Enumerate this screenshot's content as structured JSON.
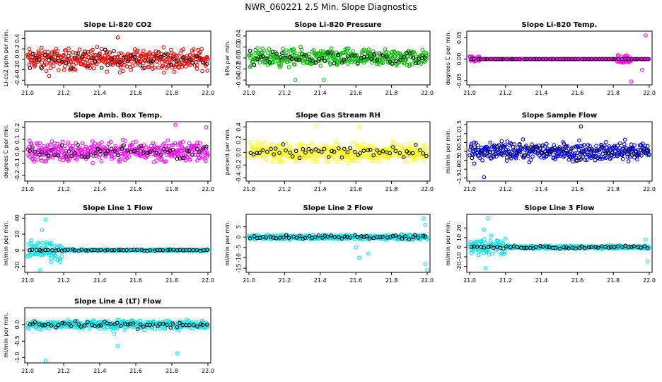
{
  "title": "NWR_060221  2.5 Min. Slope Diagnostics",
  "chart_data": [
    {
      "type": "scatter",
      "title": "Slope Li-820 CO2",
      "ylabel": "Li-co2 ppm per min.",
      "xlim": [
        21.0,
        22.0
      ],
      "ylim": [
        -0.45,
        0.5
      ],
      "xticks": [
        21.0,
        21.2,
        21.4,
        21.6,
        21.8,
        22.0
      ],
      "yticks": [
        -0.4,
        -0.2,
        0.0,
        0.2,
        0.4
      ],
      "ytick_labels": [
        "-0.4",
        "-0.2",
        "0.0",
        "0.2",
        "0.4"
      ],
      "color": "#ff0000",
      "spread": 0.18,
      "outliers": [
        [
          21.5,
          0.42
        ],
        [
          21.12,
          -0.32
        ]
      ],
      "pattern": "noise"
    },
    {
      "type": "scatter",
      "title": "Slope Li-820 Pressure",
      "ylabel": "kPa per min.",
      "xlim": [
        21.0,
        22.0
      ],
      "ylim": [
        -0.045,
        0.045
      ],
      "xticks": [
        21.0,
        21.2,
        21.4,
        21.6,
        21.8,
        22.0
      ],
      "yticks": [
        -0.04,
        -0.02,
        0.0,
        0.02,
        0.04
      ],
      "ytick_labels": [
        "-0.04",
        "-0.02",
        "0.00",
        "0.02",
        "0.04"
      ],
      "color": "#00bb00",
      "spread": 0.014,
      "outliers": [
        [
          21.26,
          -0.04
        ],
        [
          21.42,
          -0.04
        ]
      ],
      "pattern": "noise"
    },
    {
      "type": "scatter",
      "title": "Slope Li-820 Temp.",
      "ylabel": "degrees C per min.",
      "xlim": [
        21.0,
        22.0
      ],
      "ylim": [
        -0.055,
        0.06
      ],
      "xticks": [
        21.0,
        21.2,
        21.4,
        21.6,
        21.8,
        22.0
      ],
      "yticks": [
        -0.05,
        0.0,
        0.05
      ],
      "ytick_labels": [
        "-0.05",
        "0.00",
        "0.05"
      ],
      "color": "#ff00ff",
      "spread": 0.0,
      "outliers": [
        [
          21.9,
          -0.052
        ],
        [
          21.98,
          0.055
        ],
        [
          21.96,
          -0.025
        ]
      ],
      "pattern": "flat"
    },
    {
      "type": "scatter",
      "title": "Slope Amb. Box Temp.",
      "ylabel": "degrees C per min.",
      "xlim": [
        21.0,
        22.0
      ],
      "ylim": [
        -0.23,
        0.23
      ],
      "xticks": [
        21.0,
        21.2,
        21.4,
        21.6,
        21.8,
        22.0
      ],
      "yticks": [
        -0.2,
        -0.1,
        0.0,
        0.1,
        0.2
      ],
      "ytick_labels": [
        "-0.2",
        "-0.1",
        "0.0",
        "0.1",
        "0.2"
      ],
      "color": "#ff00ff",
      "spread": 0.07,
      "outliers": [
        [
          21.82,
          0.22
        ],
        [
          21.99,
          0.2
        ]
      ],
      "pattern": "noise"
    },
    {
      "type": "scatter",
      "title": "Slope Gas Stream RH",
      "ylabel": "percent per min.",
      "xlim": [
        21.0,
        22.0
      ],
      "ylim": [
        -0.42,
        0.45
      ],
      "xticks": [
        21.0,
        21.2,
        21.4,
        21.6,
        21.8,
        22.0
      ],
      "yticks": [
        -0.4,
        -0.2,
        0.0,
        0.2,
        0.4
      ],
      "ytick_labels": [
        "-0.4",
        "-0.2",
        "0.0",
        "0.2",
        "0.4"
      ],
      "color": "#ffff00",
      "spread": 0.12,
      "outliers": [
        [
          21.38,
          0.42
        ],
        [
          21.62,
          0.4
        ]
      ],
      "pattern": "noise"
    },
    {
      "type": "scatter",
      "title": "Slope Sample Flow",
      "ylabel": "ml/min per min.",
      "xlim": [
        21.0,
        22.0
      ],
      "ylim": [
        -1.55,
        1.55
      ],
      "xticks": [
        21.0,
        21.2,
        21.4,
        21.6,
        21.8,
        22.0
      ],
      "yticks": [
        -1.5,
        -1.0,
        -0.5,
        0.0,
        0.5,
        1.0,
        1.5
      ],
      "ytick_labels": [
        "-1.5",
        "-1.0",
        "-0.5",
        "0.0",
        "0.5",
        "1.0",
        "1.5"
      ],
      "color": "#0000ee",
      "spread": 0.45,
      "outliers": [
        [
          21.08,
          -1.45
        ],
        [
          21.62,
          1.4
        ]
      ],
      "pattern": "noise"
    },
    {
      "type": "scatter",
      "title": "Slope Line 1 Flow",
      "ylabel": "ml/min per min.",
      "xlim": [
        21.0,
        22.0
      ],
      "ylim": [
        -25,
        42
      ],
      "xticks": [
        21.0,
        21.2,
        21.4,
        21.6,
        21.8,
        22.0
      ],
      "yticks": [
        -20,
        0,
        20,
        40
      ],
      "ytick_labels": [
        "-20",
        "0",
        "20",
        "40"
      ],
      "color": "#00e5ee",
      "spread": 1.0,
      "outliers": [
        [
          21.1,
          38
        ],
        [
          21.08,
          25
        ],
        [
          21.13,
          -15
        ],
        [
          21.18,
          -15
        ],
        [
          21.07,
          -26
        ],
        [
          21.02,
          12
        ],
        [
          21.12,
          -6
        ]
      ],
      "pattern": "burst",
      "burst_range": [
        21.0,
        21.2
      ],
      "burst_spread": 10
    },
    {
      "type": "scatter",
      "title": "Slope Line 2 Flow",
      "ylabel": "ml/min per min.",
      "xlim": [
        21.0,
        22.0
      ],
      "ylim": [
        -16,
        10
      ],
      "xticks": [
        21.0,
        21.2,
        21.4,
        21.6,
        21.8,
        22.0
      ],
      "yticks": [
        -15,
        -10,
        -5,
        0,
        5
      ],
      "ytick_labels": [
        "-15",
        "-10",
        "-5",
        "0",
        "5"
      ],
      "color": "#00e5ee",
      "spread": 1.0,
      "outliers": [
        [
          21.98,
          9
        ],
        [
          21.99,
          6
        ],
        [
          21.99,
          -13
        ],
        [
          22.0,
          -16
        ],
        [
          21.62,
          -10
        ],
        [
          21.67,
          -8
        ],
        [
          21.6,
          -5
        ]
      ],
      "pattern": "noise"
    },
    {
      "type": "scatter",
      "title": "Slope Line 3 Flow",
      "ylabel": "ml/min per min.",
      "xlim": [
        21.0,
        22.0
      ],
      "ylim": [
        -24,
        32
      ],
      "xticks": [
        21.0,
        21.2,
        21.4,
        21.6,
        21.8,
        22.0
      ],
      "yticks": [
        -20,
        -10,
        0,
        10,
        20
      ],
      "ytick_labels": [
        "-20",
        "-10",
        "0",
        "10",
        "20"
      ],
      "color": "#00e5ee",
      "spread": 1.5,
      "outliers": [
        [
          21.1,
          30
        ],
        [
          21.08,
          18
        ],
        [
          21.12,
          12
        ],
        [
          21.09,
          -22
        ],
        [
          21.05,
          -8
        ],
        [
          21.99,
          -15
        ],
        [
          21.98,
          8
        ]
      ],
      "pattern": "burst",
      "burst_range": [
        21.0,
        21.2
      ],
      "burst_spread": 8
    },
    {
      "type": "scatter",
      "title": "Slope Line 4 (LT) Flow",
      "ylabel": "ml/min per min.",
      "xlim": [
        21.0,
        22.0
      ],
      "ylim": [
        -1.1,
        0.45
      ],
      "xticks": [
        21.0,
        21.2,
        21.4,
        21.6,
        21.8,
        22.0
      ],
      "yticks": [
        -1.0,
        -0.5,
        0.0
      ],
      "ytick_labels": [
        "-1.0",
        "-0.5",
        "0.0"
      ],
      "color": "#00e5ee",
      "spread": 0.12,
      "outliers": [
        [
          21.1,
          -1.1
        ],
        [
          21.5,
          -0.65
        ],
        [
          21.83,
          -0.88
        ],
        [
          21.48,
          -0.28
        ]
      ],
      "pattern": "noise"
    }
  ]
}
